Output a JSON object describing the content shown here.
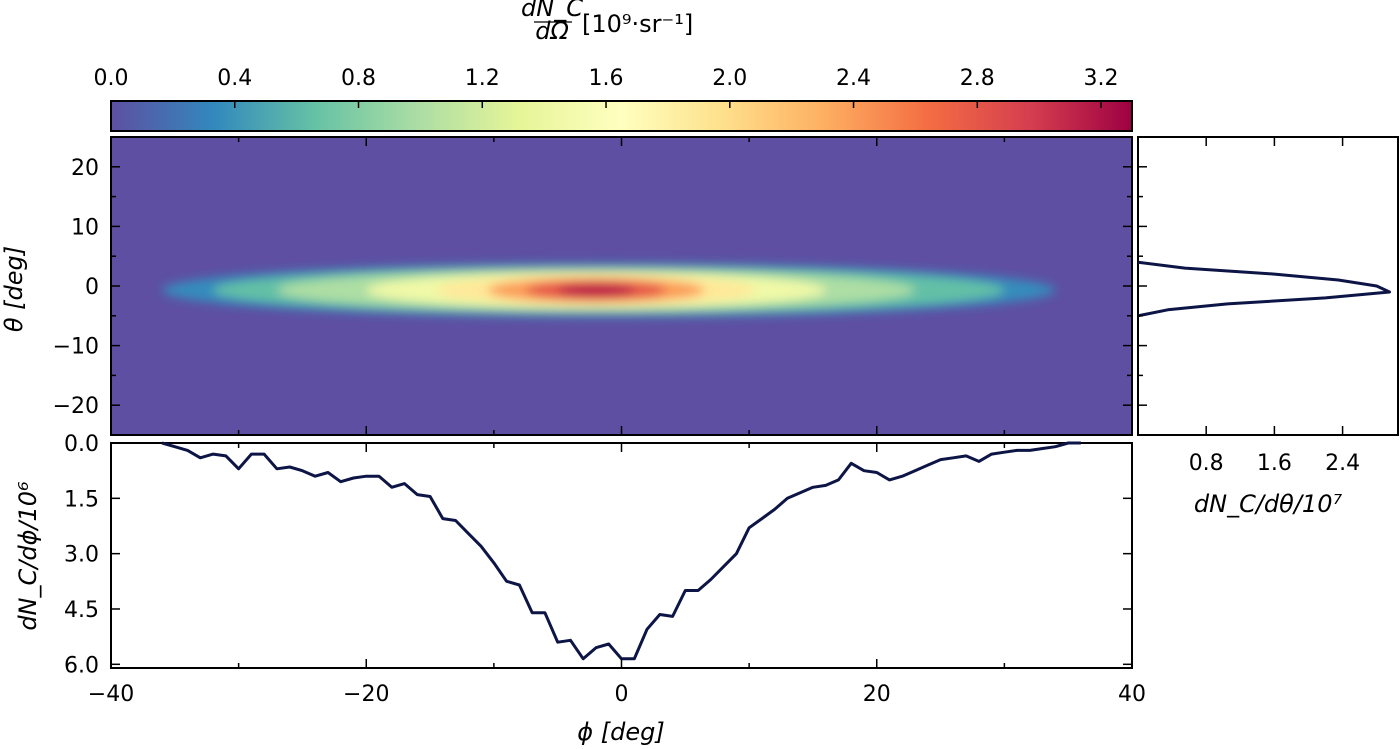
{
  "chart_data": [
    {
      "type": "heatmap",
      "xlabel": "ϕ [deg]",
      "ylabel": "θ [deg]",
      "xlim": [
        -40,
        40
      ],
      "ylim": [
        -25,
        25
      ],
      "yticks": [
        -20,
        -10,
        0,
        10,
        20
      ],
      "colorbar": {
        "label_fraction_num": "dN_C",
        "label_fraction_den": "dΩ",
        "label_units": "[10⁹·sr⁻¹]",
        "range": [
          0,
          3.3
        ],
        "ticks": [
          "0.0",
          "0.4",
          "0.8",
          "1.2",
          "1.6",
          "2.0",
          "2.4",
          "2.8",
          "3.2"
        ],
        "colormap": "Spectral_r",
        "colors": [
          "#5e4fa2",
          "#3288bd",
          "#66c2a5",
          "#abdda4",
          "#e6f598",
          "#ffffbf",
          "#fee08b",
          "#fdae61",
          "#f46d43",
          "#d53e4f",
          "#9e0142"
        ],
        "background_color": "#5e4fa2"
      },
      "source_extent": {
        "phi": [
          -35,
          35
        ],
        "theta": [
          -5,
          4
        ]
      },
      "peak": {
        "phi": -2,
        "theta": -1,
        "value": 3.2
      }
    },
    {
      "type": "line",
      "panel": "bottom marginal",
      "xlabel": "ϕ [deg]",
      "ylabel": "dN_C/dϕ/10⁶",
      "y_inverted": true,
      "ylim": [
        0,
        6.1
      ],
      "xlim": [
        -40,
        40
      ],
      "xticks": [
        "−40",
        "−20",
        "0",
        "20",
        "40"
      ],
      "yticks": [
        "0.0",
        "1.5",
        "3.0",
        "4.5",
        "6.0"
      ],
      "line_color": "#0c1545",
      "x": [
        -36,
        -35,
        -34,
        -33,
        -32,
        -31,
        -30,
        -29,
        -28,
        -27,
        -26,
        -25,
        -24,
        -23,
        -22,
        -21,
        -20,
        -19,
        -18,
        -17,
        -16,
        -15,
        -14,
        -13,
        -12,
        -11,
        -10,
        -9,
        -8,
        -7,
        -6,
        -5,
        -4,
        -3,
        -2,
        -1,
        0,
        1,
        2,
        3,
        4,
        5,
        6,
        7,
        8,
        9,
        10,
        11,
        12,
        13,
        14,
        15,
        16,
        17,
        18,
        19,
        20,
        21,
        22,
        23,
        24,
        25,
        26,
        27,
        28,
        29,
        30,
        31,
        32,
        33,
        34,
        35,
        36
      ],
      "values": [
        0.0,
        0.1,
        0.2,
        0.4,
        0.3,
        0.35,
        0.7,
        0.3,
        0.3,
        0.7,
        0.65,
        0.75,
        0.9,
        0.8,
        1.05,
        0.95,
        0.9,
        0.9,
        1.2,
        1.1,
        1.4,
        1.45,
        2.05,
        2.1,
        2.45,
        2.8,
        3.25,
        3.75,
        3.85,
        4.6,
        4.6,
        5.4,
        5.35,
        5.85,
        5.55,
        5.45,
        5.85,
        5.85,
        5.05,
        4.65,
        4.7,
        4.0,
        4.0,
        3.7,
        3.35,
        3.0,
        2.3,
        2.05,
        1.8,
        1.5,
        1.35,
        1.2,
        1.15,
        1.0,
        0.55,
        0.75,
        0.8,
        1.0,
        0.9,
        0.75,
        0.6,
        0.45,
        0.4,
        0.35,
        0.5,
        0.3,
        0.25,
        0.2,
        0.2,
        0.15,
        0.1,
        0.0,
        0.0
      ]
    },
    {
      "type": "line",
      "panel": "right marginal",
      "xlabel": "dN_C/dθ/10⁷",
      "xlim": [
        0,
        3.05
      ],
      "ylim": [
        -25,
        25
      ],
      "xticks": [
        "0.8",
        "1.6",
        "2.4"
      ],
      "line_color": "#0c1545",
      "theta": [
        4.0,
        3.0,
        2.0,
        1.0,
        0.0,
        -1.0,
        -2.0,
        -3.0,
        -4.0,
        -5.0
      ],
      "values": [
        0.0,
        0.55,
        1.6,
        2.35,
        2.8,
        2.95,
        2.2,
        1.05,
        0.35,
        0.0
      ]
    }
  ]
}
